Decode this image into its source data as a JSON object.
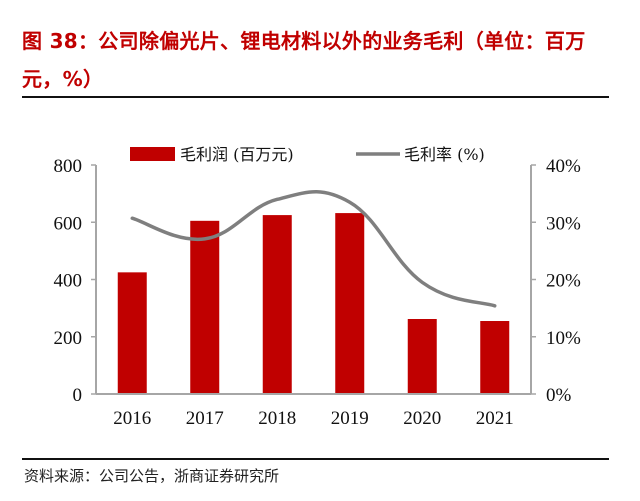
{
  "header": {
    "title": "图 38：公司除偏光片、锂电材料以外的业务毛利（单位：百万元，%）"
  },
  "footer": {
    "source": "资料来源：公司公告，浙商证券研究所"
  },
  "colors": {
    "title": "#c00000",
    "bar": "#c00000",
    "line": "#7f7f7f",
    "axis": "#a6a6a6"
  },
  "chart_data": {
    "type": "bar+line",
    "title": "图 38：公司除偏光片、锂电材料以外的业务毛利（单位：百万元，%）",
    "categories": [
      "2016",
      "2017",
      "2018",
      "2019",
      "2020",
      "2021"
    ],
    "series": [
      {
        "name": "毛利润 (百万元)",
        "type": "bar",
        "axis": "left",
        "values": [
          425,
          605,
          625,
          632,
          262,
          255
        ]
      },
      {
        "name": "毛利率 (%)",
        "type": "line",
        "smooth": true,
        "axis": "right",
        "values": [
          30.7,
          27.1,
          34.0,
          33.5,
          19.5,
          15.4
        ]
      }
    ],
    "y_left": {
      "ylim": [
        0,
        800
      ],
      "ticks": [
        "0",
        "200",
        "400",
        "600",
        "800"
      ],
      "tick_values": [
        0,
        200,
        400,
        600,
        800
      ]
    },
    "y_right": {
      "ylim": [
        0,
        40
      ],
      "ticks": [
        "0%",
        "10%",
        "20%",
        "30%",
        "40%"
      ],
      "tick_values": [
        0,
        10,
        20,
        30,
        40
      ]
    },
    "legend": {
      "position": "top",
      "entries": [
        "毛利润 (百万元)",
        "毛利率 (%)"
      ]
    },
    "grid": false
  }
}
